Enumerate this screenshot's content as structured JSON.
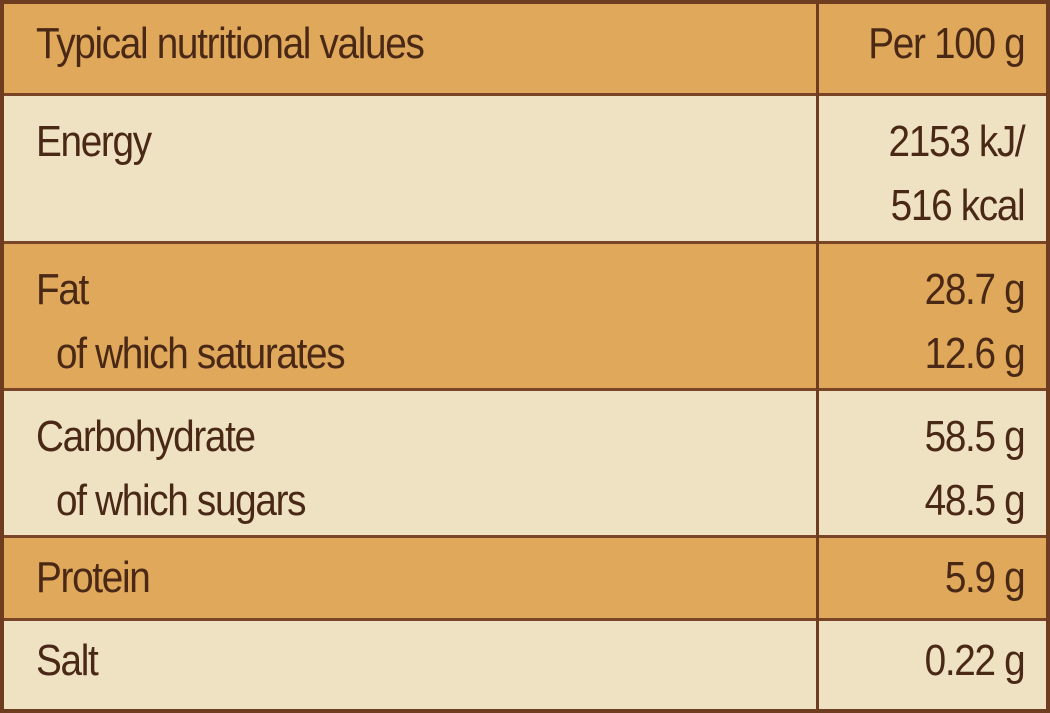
{
  "table": {
    "header": [
      "Typical nutritional values",
      "Per 100 g"
    ],
    "rows": [
      {
        "label": [
          "Energy"
        ],
        "value": [
          "2153 kJ/",
          "516 kcal"
        ]
      },
      {
        "label": [
          "Fat",
          "of which saturates"
        ],
        "value": [
          "28.7 g",
          "12.6 g"
        ]
      },
      {
        "label": [
          "Carbohydrate",
          "of which sugars"
        ],
        "value": [
          "58.5 g",
          "48.5 g"
        ]
      },
      {
        "label": [
          "Protein"
        ],
        "value": [
          "5.9 g"
        ]
      },
      {
        "label": [
          "Salt"
        ],
        "value": [
          "0.22 g"
        ]
      }
    ]
  }
}
